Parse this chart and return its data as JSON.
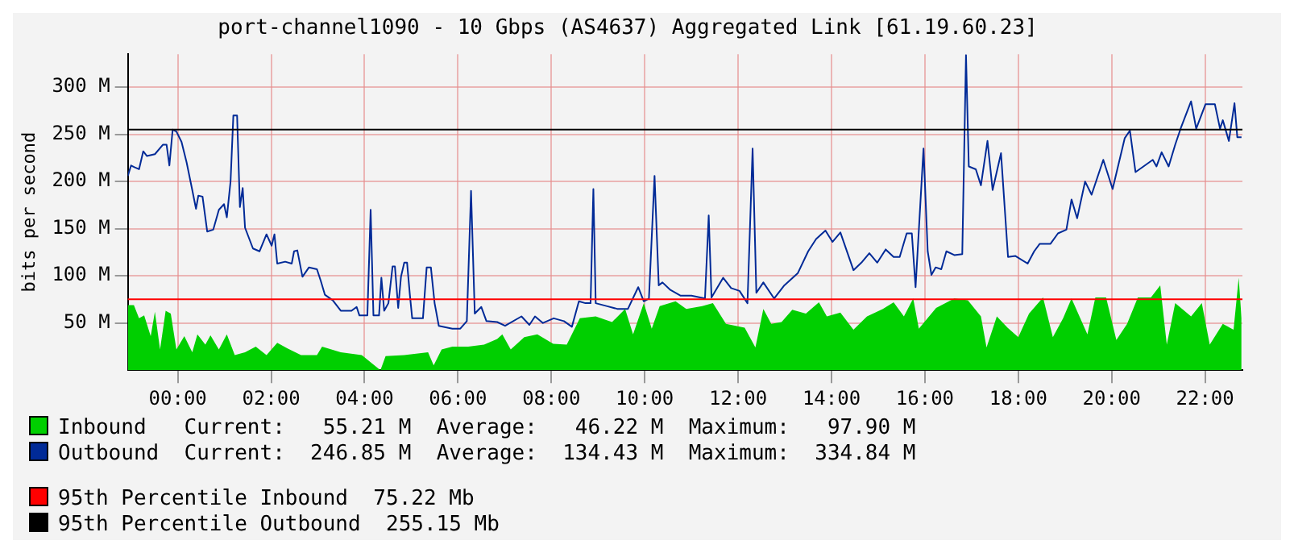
{
  "chart_data": {
    "type": "line",
    "title": "port-channel1090 - 10 Gbps (AS4637) Aggregated Link [61.19.60.23]",
    "ylabel": "bits per second",
    "xlim": [
      -1.07,
      22.8
    ],
    "xticks": [
      {
        "value": 0,
        "label": "00:00"
      },
      {
        "value": 2,
        "label": "02:00"
      },
      {
        "value": 4,
        "label": "04:00"
      },
      {
        "value": 6,
        "label": "06:00"
      },
      {
        "value": 8,
        "label": "08:00"
      },
      {
        "value": 10,
        "label": "10:00"
      },
      {
        "value": 12,
        "label": "12:00"
      },
      {
        "value": 14,
        "label": "14:00"
      },
      {
        "value": 16,
        "label": "16:00"
      },
      {
        "value": 18,
        "label": "18:00"
      },
      {
        "value": 20,
        "label": "20:00"
      },
      {
        "value": 22,
        "label": "22:00"
      }
    ],
    "ylim": [
      0,
      335
    ],
    "yticks": [
      {
        "value": 50,
        "label": "50 M"
      },
      {
        "value": 100,
        "label": "100 M"
      },
      {
        "value": 150,
        "label": "150 M"
      },
      {
        "value": 200,
        "label": "200 M"
      },
      {
        "value": 250,
        "label": "250 M"
      },
      {
        "value": 300,
        "label": "300 M"
      }
    ],
    "grid": true,
    "legend": "bottom",
    "marker": "none",
    "line_style": "solid",
    "series": [
      {
        "name": "Inbound",
        "type": "area",
        "color": "#00cf00",
        "x": [
          -1.07,
          -0.94,
          -0.83,
          -0.72,
          -0.58,
          -0.49,
          -0.38,
          -0.26,
          -0.15,
          -0.03,
          0.14,
          0.31,
          0.42,
          0.59,
          0.7,
          0.88,
          1.05,
          1.22,
          1.44,
          1.67,
          1.9,
          2.13,
          2.35,
          2.64,
          2.98,
          3.09,
          3.49,
          3.94,
          4.34,
          4.45,
          4.85,
          5.36,
          5.48,
          5.65,
          5.88,
          6.22,
          6.56,
          6.84,
          6.95,
          7.13,
          7.42,
          7.7,
          8.04,
          8.33,
          8.61,
          8.95,
          9.3,
          9.58,
          9.75,
          9.98,
          10.15,
          10.32,
          10.66,
          10.89,
          11.23,
          11.46,
          11.74,
          12.14,
          12.37,
          12.54,
          12.71,
          12.93,
          13.16,
          13.45,
          13.73,
          13.9,
          14.19,
          14.47,
          14.76,
          15.1,
          15.33,
          15.55,
          15.75,
          15.87,
          16.24,
          16.63,
          16.92,
          17.2,
          17.32,
          17.54,
          17.77,
          18.0,
          18.23,
          18.53,
          18.74,
          18.96,
          19.14,
          19.31,
          19.48,
          19.65,
          19.88,
          20.1,
          20.33,
          20.56,
          20.84,
          21.04,
          21.18,
          21.36,
          21.7,
          21.93,
          22.1,
          22.38,
          22.61,
          22.72,
          22.78
        ],
        "values": [
          69,
          69,
          55,
          58,
          36,
          62,
          22,
          63,
          60,
          22,
          36,
          19,
          38,
          27,
          37,
          22,
          38,
          16,
          19,
          25,
          16,
          29,
          23,
          16,
          16,
          25,
          19,
          16,
          0,
          15,
          16,
          19,
          5,
          22,
          25,
          25,
          27,
          33,
          38,
          22,
          35,
          38,
          28,
          27,
          55,
          57,
          51,
          65,
          38,
          71,
          44,
          68,
          73,
          65,
          68,
          71,
          49,
          45,
          24,
          65,
          49,
          51,
          64,
          60,
          72,
          57,
          61,
          43,
          57,
          65,
          72,
          57,
          76,
          44,
          66,
          76,
          74,
          57,
          24,
          57,
          45,
          35,
          60,
          77,
          35,
          55,
          76,
          57,
          38,
          77,
          77,
          32,
          49,
          77,
          77,
          90,
          27,
          71,
          57,
          71,
          27,
          49,
          43,
          98,
          55
        ]
      },
      {
        "name": "Outbound",
        "type": "line",
        "color": "#002a97",
        "x": [
          -1.07,
          -1.0,
          -0.92,
          -0.83,
          -0.74,
          -0.66,
          -0.49,
          -0.32,
          -0.24,
          -0.18,
          -0.11,
          -0.03,
          0.08,
          0.19,
          0.31,
          0.39,
          0.44,
          0.53,
          0.63,
          0.76,
          0.88,
          0.99,
          1.05,
          1.13,
          1.19,
          1.27,
          1.33,
          1.39,
          1.44,
          1.61,
          1.75,
          1.9,
          2.01,
          2.07,
          2.13,
          2.3,
          2.44,
          2.49,
          2.56,
          2.67,
          2.81,
          2.98,
          3.06,
          3.15,
          3.32,
          3.49,
          3.72,
          3.83,
          3.89,
          4.06,
          4.13,
          4.19,
          4.31,
          4.36,
          4.42,
          4.51,
          4.6,
          4.65,
          4.72,
          4.78,
          4.85,
          4.91,
          4.97,
          5.02,
          5.25,
          5.33,
          5.42,
          5.5,
          5.59,
          5.88,
          6.05,
          6.19,
          6.28,
          6.36,
          6.5,
          6.61,
          6.84,
          7.01,
          7.36,
          7.53,
          7.65,
          7.82,
          8.05,
          8.27,
          8.44,
          8.59,
          8.73,
          8.84,
          8.9,
          8.95,
          9.18,
          9.41,
          9.64,
          9.86,
          9.98,
          10.09,
          10.21,
          10.3,
          10.38,
          10.55,
          10.77,
          11.0,
          11.29,
          11.37,
          11.43,
          11.68,
          11.85,
          12.03,
          12.2,
          12.31,
          12.39,
          12.54,
          12.77,
          12.99,
          13.28,
          13.5,
          13.67,
          13.87,
          14.02,
          14.19,
          14.47,
          14.64,
          14.81,
          14.98,
          15.16,
          15.33,
          15.46,
          15.61,
          15.72,
          15.8,
          15.97,
          16.06,
          16.14,
          16.23,
          16.35,
          16.46,
          16.63,
          16.8,
          16.88,
          16.94,
          17.09,
          17.2,
          17.34,
          17.45,
          17.63,
          17.78,
          17.94,
          18.2,
          18.34,
          18.46,
          18.69,
          18.85,
          19.03,
          19.14,
          19.26,
          19.43,
          19.57,
          19.82,
          20.02,
          20.28,
          20.39,
          20.51,
          20.68,
          20.88,
          20.96,
          21.07,
          21.22,
          21.36,
          21.49,
          21.7,
          21.81,
          22.01,
          22.21,
          22.32,
          22.38,
          22.51,
          22.63,
          22.69,
          22.78
        ],
        "values": [
          206,
          217,
          215,
          213,
          232,
          227,
          229,
          239,
          239,
          217,
          255,
          253,
          242,
          220,
          191,
          171,
          185,
          184,
          147,
          149,
          170,
          176,
          162,
          200,
          270,
          270,
          173,
          193,
          151,
          129,
          126,
          144,
          132,
          144,
          113,
          115,
          113,
          126,
          127,
          99,
          109,
          107,
          95,
          80,
          74,
          63,
          63,
          67,
          58,
          58,
          170,
          58,
          58,
          98,
          63,
          71,
          110,
          110,
          66,
          99,
          114,
          114,
          80,
          55,
          55,
          109,
          109,
          71,
          47,
          44,
          44,
          52,
          190,
          60,
          67,
          52,
          51,
          47,
          57,
          48,
          57,
          50,
          55,
          52,
          46,
          73,
          71,
          71,
          192,
          71,
          68,
          65,
          65,
          88,
          73,
          76,
          206,
          90,
          93,
          85,
          79,
          79,
          76,
          164,
          77,
          98,
          87,
          84,
          71,
          235,
          82,
          93,
          76,
          90,
          103,
          126,
          139,
          148,
          136,
          146,
          106,
          114,
          124,
          114,
          128,
          120,
          120,
          145,
          145,
          88,
          235,
          126,
          101,
          109,
          107,
          126,
          122,
          123,
          334,
          216,
          213,
          196,
          243,
          191,
          230,
          120,
          121,
          113,
          126,
          134,
          134,
          145,
          149,
          181,
          161,
          200,
          186,
          223,
          192,
          246,
          254,
          210,
          216,
          223,
          216,
          231,
          216,
          239,
          258,
          285,
          256,
          282,
          282,
          256,
          265,
          243,
          283,
          247,
          247
        ]
      }
    ],
    "ref_lines": [
      {
        "axis": "y",
        "value": 75.22,
        "label": "95th Percentile Inbound  75.22 Mb",
        "color": "#ff0000"
      },
      {
        "axis": "y",
        "value": 255.15,
        "label": "95th Percentile Outbound  255.15 Mb",
        "color": "#000000"
      }
    ],
    "annotations": [
      "Current:   55.21 M  Average:   46.22 M  Maximum:   97.90 M",
      "Current:  246.85 M  Average:  134.43 M  Maximum:  334.84 M"
    ]
  }
}
